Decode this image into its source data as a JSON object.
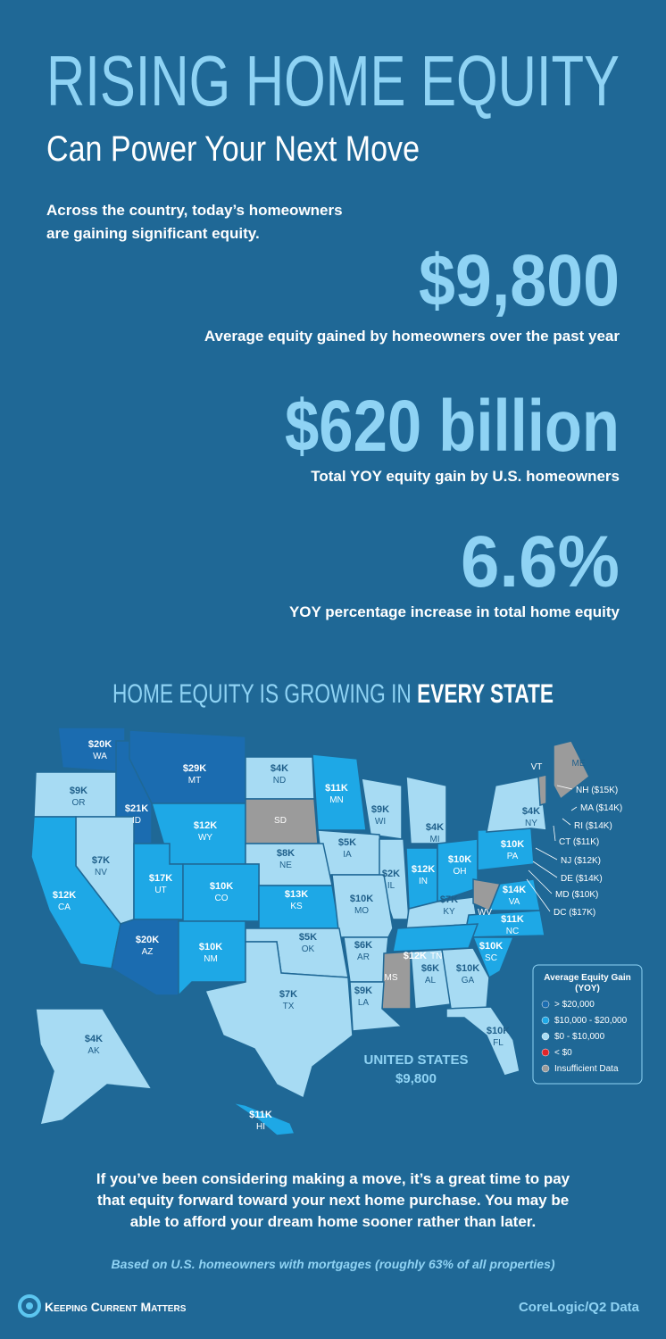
{
  "header": {
    "title": "RISING HOME EQUITY",
    "subtitle": "Can Power Your Next Move",
    "intro": [
      "Across the country, today’s homeowners",
      "are gaining significant equity."
    ]
  },
  "stats": [
    {
      "value": "$9,800",
      "caption": "Average equity gained by homeowners over the past year"
    },
    {
      "value": "$620 billion",
      "caption": "Total YOY equity gain by U.S. homeowners"
    },
    {
      "value": "6.6%",
      "caption": "YOY percentage increase in total home equity"
    }
  ],
  "map": {
    "title": [
      "HOME EQUITY IS GROWING IN ",
      "EVERY STATE"
    ],
    "states": [
      {
        "abbr": "WA",
        "value": "$20K",
        "color": "#1b6cb0"
      },
      {
        "abbr": "OR",
        "value": "$9K",
        "color": "#a7dbf3"
      },
      {
        "abbr": "ID",
        "value": "$21K",
        "color": "#1b6cb0"
      },
      {
        "abbr": "MT",
        "value": "$29K",
        "color": "#1b6cb0"
      },
      {
        "abbr": "WY",
        "value": "$12K",
        "color": "#1ea8e6"
      },
      {
        "abbr": "ND",
        "value": "$4K",
        "color": "#a7dbf3"
      },
      {
        "abbr": "SD",
        "color": "#9b9b9b"
      },
      {
        "abbr": "MN",
        "value": "$11K",
        "color": "#1ea8e6"
      },
      {
        "abbr": "WI",
        "value": "$9K",
        "color": "#a7dbf3"
      },
      {
        "abbr": "MI",
        "value": "$4K",
        "color": "#a7dbf3"
      },
      {
        "abbr": "IA",
        "value": "$5K",
        "color": "#a7dbf3"
      },
      {
        "abbr": "NE",
        "value": "$8K",
        "color": "#a7dbf3"
      },
      {
        "abbr": "NV",
        "value": "$7K",
        "color": "#a7dbf3"
      },
      {
        "abbr": "UT",
        "value": "$17K",
        "color": "#1ea8e6"
      },
      {
        "abbr": "CO",
        "value": "$10K",
        "color": "#1ea8e6"
      },
      {
        "abbr": "KS",
        "value": "$13K",
        "color": "#1ea8e6"
      },
      {
        "abbr": "IL",
        "value": "$2K",
        "color": "#a7dbf3"
      },
      {
        "abbr": "MO",
        "value": "$10K",
        "color": "#a7dbf3"
      },
      {
        "abbr": "IN",
        "value": "$12K",
        "color": "#1ea8e6"
      },
      {
        "abbr": "OH",
        "value": "$10K",
        "color": "#1ea8e6"
      },
      {
        "abbr": "PA",
        "value": "$10K",
        "color": "#1ea8e6"
      },
      {
        "abbr": "NY",
        "value": "$4K",
        "color": "#a7dbf3"
      },
      {
        "abbr": "KY",
        "value": "$7K",
        "color": "#a7dbf3"
      },
      {
        "abbr": "WV",
        "color": "#9b9b9b"
      },
      {
        "abbr": "VA",
        "value": "$14K",
        "color": "#1ea8e6"
      },
      {
        "abbr": "NC",
        "value": "$11K",
        "color": "#1ea8e6"
      },
      {
        "abbr": "TN",
        "value": "$12K",
        "color": "#1ea8e6"
      },
      {
        "abbr": "CA",
        "value": "$12K",
        "color": "#1ea8e6"
      },
      {
        "abbr": "AZ",
        "value": "$20K",
        "color": "#1b6cb0"
      },
      {
        "abbr": "NM",
        "value": "$10K",
        "color": "#1ea8e6"
      },
      {
        "abbr": "OK",
        "value": "$5K",
        "color": "#a7dbf3"
      },
      {
        "abbr": "AR",
        "value": "$6K",
        "color": "#a7dbf3"
      },
      {
        "abbr": "MS",
        "color": "#9b9b9b"
      },
      {
        "abbr": "AL",
        "value": "$6K",
        "color": "#a7dbf3"
      },
      {
        "abbr": "GA",
        "value": "$10K",
        "color": "#a7dbf3"
      },
      {
        "abbr": "SC",
        "value": "$10K",
        "color": "#1ea8e6"
      },
      {
        "abbr": "LA",
        "value": "$9K",
        "color": "#a7dbf3"
      },
      {
        "abbr": "TX",
        "value": "$7K",
        "color": "#a7dbf3"
      },
      {
        "abbr": "FL",
        "value": "$10K",
        "color": "#a7dbf3"
      },
      {
        "abbr": "AK",
        "value": "$4K",
        "color": "#a7dbf3"
      },
      {
        "abbr": "HI",
        "value": "$11K",
        "color": "#1ea8e6"
      },
      {
        "abbr": "VT",
        "color": "#9b9b9b"
      },
      {
        "abbr": "ME",
        "color": "#9b9b9b"
      }
    ],
    "callouts": [
      "NH ($15K)",
      "MA ($14K)",
      "RI ($14K)",
      "CT ($11K)",
      "NJ ($12K)",
      "DE ($14K)",
      "MD ($10K)",
      "DC ($17K)"
    ],
    "us_label": "UNITED STATES",
    "us_value": "$9,800",
    "legend": {
      "title": [
        "Average Equity Gain",
        "(YOY)"
      ],
      "items": [
        {
          "label": "> $20,000",
          "color": "#1b6cb0"
        },
        {
          "label": "$10,000 - $20,000",
          "color": "#1ea8e6"
        },
        {
          "label": "$0 - $10,000",
          "color": "#a7dbf3"
        },
        {
          "label": "< $0",
          "color": "#e0252b"
        },
        {
          "label": "Insufficient Data",
          "color": "#9b9b9b"
        }
      ]
    }
  },
  "closing": [
    "If you’ve been considering making a move, it’s a great time to pay",
    "that equity forward toward your next home purchase. You may be",
    "able to afford your dream home sooner rather than later."
  ],
  "footnote": "Based on U.S. homeowners with mortgages (roughly 63% of all properties)",
  "footer": {
    "brand": "Keeping Current Matters",
    "source": "CoreLogic/Q2 Data"
  }
}
